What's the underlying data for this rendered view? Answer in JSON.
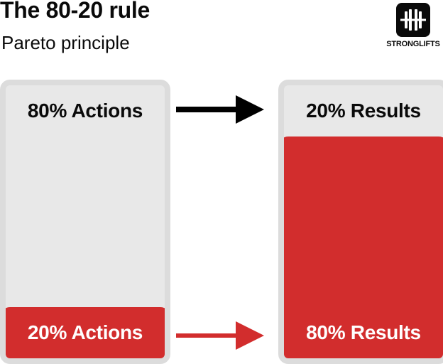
{
  "header": {
    "title": "The 80-20 rule",
    "subtitle": "Pareto principle"
  },
  "logo": {
    "text": "STRONGLIFTS",
    "icon": "barbell-icon"
  },
  "columns": {
    "actions": {
      "top_label": "80% Actions",
      "bottom_label": "20% Actions",
      "fill_fraction": 0.2
    },
    "results": {
      "top_label": "20% Results",
      "bottom_label": "80% Results",
      "fill_fraction": 0.8
    }
  },
  "arrows": {
    "top_color": "#000000",
    "bottom_color": "#d22d2d"
  },
  "colors": {
    "accent_red": "#d22d2d",
    "column_background": "#e8e8e8",
    "column_border": "#dcdcdc"
  }
}
